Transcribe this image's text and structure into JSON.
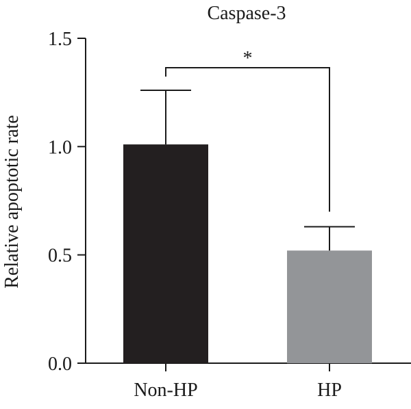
{
  "chart_data": {
    "type": "bar",
    "title": "Caspase-3",
    "xlabel": "",
    "ylabel": "Relative apoptotic rate",
    "categories": [
      "Non-HP",
      "HP"
    ],
    "values": [
      1.01,
      0.52
    ],
    "error_upper": [
      1.26,
      0.63
    ],
    "bar_colors": [
      "#231f20",
      "#939598"
    ],
    "ylim": [
      0,
      1.5
    ],
    "yticks": [
      0,
      0.5,
      1.0,
      1.5
    ],
    "ytick_labels": [
      "0.0",
      "0.5",
      "1.0",
      "1.5"
    ],
    "grid": false,
    "legend": "none",
    "significance": {
      "between": [
        "Non-HP",
        "HP"
      ],
      "label": "*"
    }
  }
}
